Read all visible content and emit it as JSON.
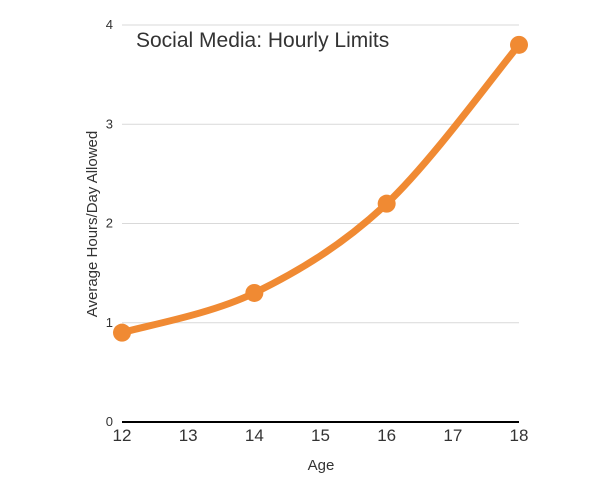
{
  "chart_data": {
    "type": "line",
    "title": "Social Media: Hourly Limits",
    "xlabel": "Age",
    "ylabel": "Average Hours/Day Allowed",
    "xlim": [
      12,
      18
    ],
    "ylim": [
      0,
      4
    ],
    "x_ticks": [
      12,
      13,
      14,
      15,
      16,
      17,
      18
    ],
    "y_ticks": [
      0,
      1,
      2,
      3,
      4
    ],
    "grid": true,
    "series": [
      {
        "x": [
          12,
          14,
          16,
          18
        ],
        "y": [
          0.9,
          1.3,
          2.2,
          3.8
        ],
        "color": "#f08a33"
      }
    ]
  }
}
